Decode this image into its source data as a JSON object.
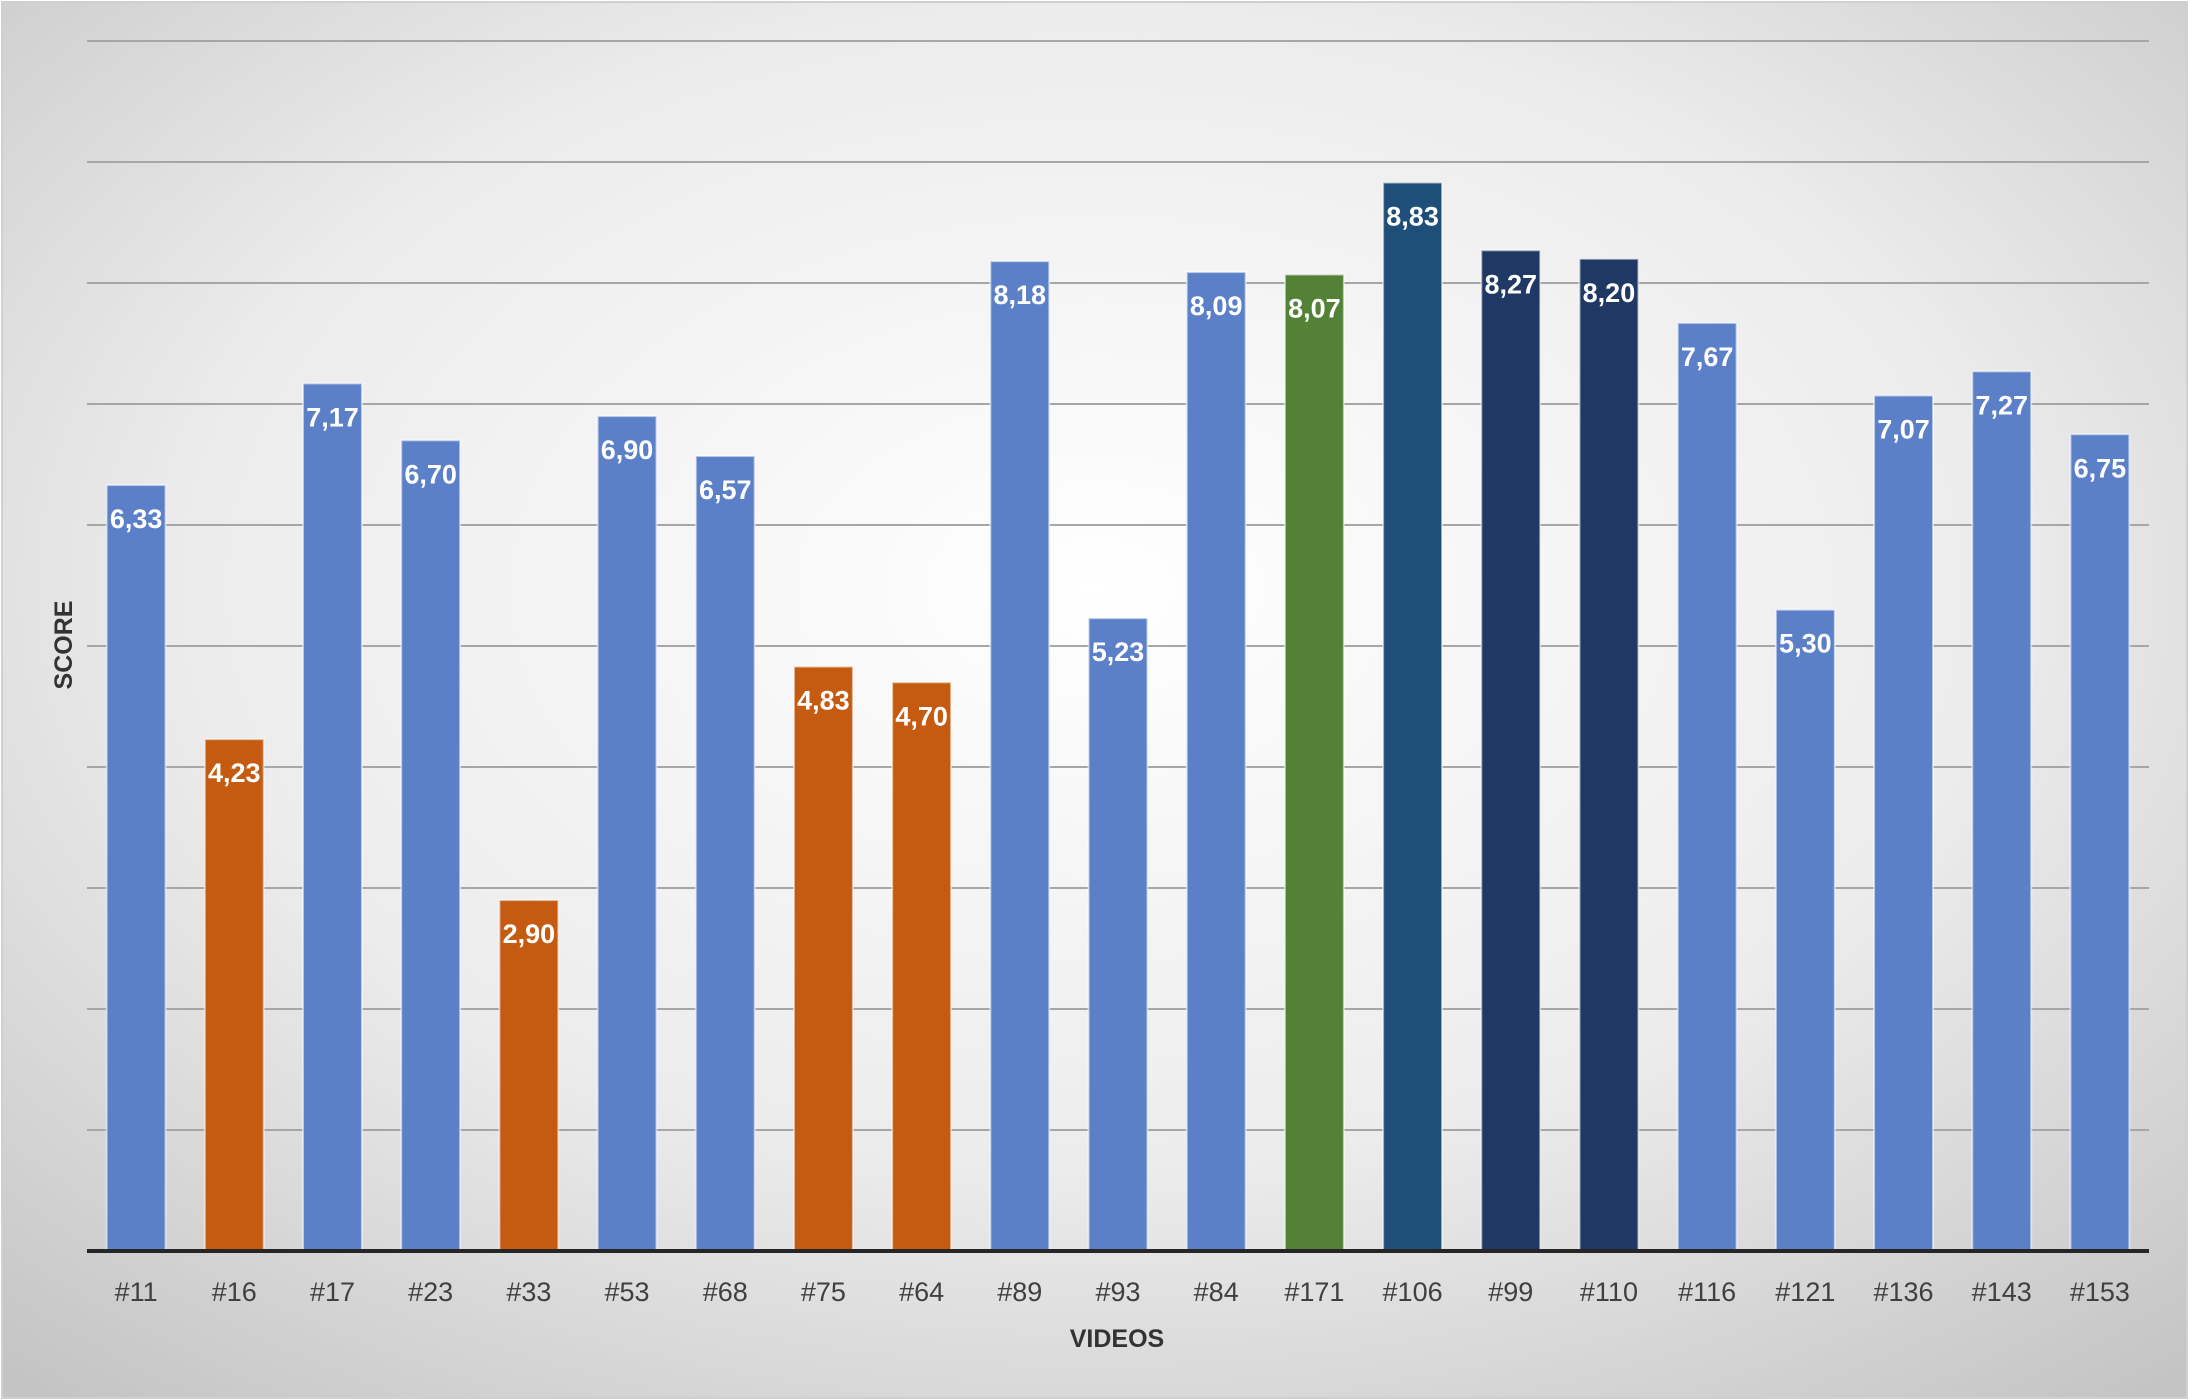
{
  "chart_data": {
    "type": "bar",
    "title": "",
    "xlabel": "VIDEOS",
    "ylabel": "SCORE",
    "ylim": [
      0,
      10
    ],
    "grid": true,
    "legend": "none",
    "value_format": "decimal-comma-2",
    "categories": [
      "#11",
      "#16",
      "#17",
      "#23",
      "#33",
      "#53",
      "#68",
      "#75",
      "#64",
      "#89",
      "#93",
      "#84",
      "#171",
      "#106",
      "#99",
      "#110",
      "#116",
      "#121",
      "#136",
      "#143",
      "#153"
    ],
    "values": [
      6.33,
      4.23,
      7.17,
      6.7,
      2.9,
      6.9,
      6.57,
      4.83,
      4.7,
      8.18,
      5.23,
      8.09,
      8.07,
      8.83,
      8.27,
      8.2,
      7.67,
      5.3,
      7.07,
      7.27,
      6.75
    ],
    "bar_colors": [
      "#5b80c8",
      "#c55a11",
      "#5b80c8",
      "#5b80c8",
      "#c55a11",
      "#5b80c8",
      "#5b80c8",
      "#c55a11",
      "#c55a11",
      "#5b80c8",
      "#5b80c8",
      "#5b80c8",
      "#538135",
      "#1f4e79",
      "#203864",
      "#203864",
      "#5b80c8",
      "#5b80c8",
      "#5b80c8",
      "#5b80c8",
      "#5b80c8"
    ]
  },
  "colors": {
    "gridline": "#a6a6a6",
    "axis_line": "#262626",
    "background_center": "#ffffff",
    "background_edge": "#c8c8c8"
  }
}
